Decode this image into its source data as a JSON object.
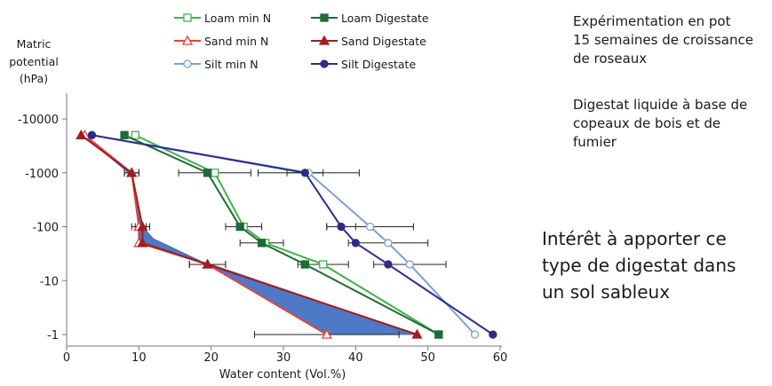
{
  "chart_data": {
    "type": "line",
    "ylabel_lines": [
      "Matric",
      "potential",
      "(hPa)"
    ],
    "xlabel": "Water content (Vol.%)",
    "xlim": [
      0,
      60
    ],
    "xticks": [
      "0",
      "10",
      "20",
      "30",
      "40",
      "50",
      "60"
    ],
    "yticks": [
      "-10000",
      "-1000",
      "-100",
      "-10",
      "-1"
    ],
    "y_levels": [
      -10000,
      -1000,
      -100,
      -10,
      -1
    ],
    "y_scale": "log",
    "grid": false,
    "legend_position": "top",
    "shaded_region": {
      "color": "#4472c4",
      "description_fill_between": [
        "Sand min N",
        "Sand Digestate"
      ]
    },
    "series": [
      {
        "name": "Loam min N",
        "color": "#3fb34a",
        "marker": "square-open",
        "points": [
          [
            9.5,
            -5000
          ],
          [
            20.5,
            -1000
          ],
          [
            24.5,
            -100
          ],
          [
            27.5,
            -50
          ],
          [
            35.5,
            -20
          ],
          [
            51.5,
            -1
          ]
        ],
        "err": [
          0,
          5,
          2.5,
          0,
          3.5,
          0
        ]
      },
      {
        "name": "Loam Digestate",
        "color": "#1e6b36",
        "marker": "square-filled",
        "points": [
          [
            8.0,
            -5000
          ],
          [
            19.5,
            -1000
          ],
          [
            24.0,
            -100
          ],
          [
            27.0,
            -50
          ],
          [
            33.0,
            -20
          ],
          [
            51.5,
            -1
          ]
        ],
        "err": [
          0,
          0,
          0,
          3,
          0,
          0
        ]
      },
      {
        "name": "Sand min N",
        "color": "#e8413c",
        "marker": "triangle-open",
        "points": [
          [
            2.5,
            -5000
          ],
          [
            9.0,
            -1000
          ],
          [
            10.0,
            -100
          ],
          [
            10.0,
            -50
          ],
          [
            19.5,
            -20
          ],
          [
            36.0,
            -1
          ]
        ],
        "err": [
          0,
          1,
          1,
          0,
          2.5,
          10
        ]
      },
      {
        "name": "Sand Digestate",
        "color": "#a21e1e",
        "marker": "triangle-filled",
        "points": [
          [
            2.0,
            -5000
          ],
          [
            9.0,
            -1000
          ],
          [
            10.5,
            -100
          ],
          [
            10.5,
            -50
          ],
          [
            19.5,
            -20
          ],
          [
            48.5,
            -1
          ]
        ],
        "err": [
          0,
          1,
          1,
          0,
          2.5,
          0
        ]
      },
      {
        "name": "Silt min N",
        "color": "#7b9fd8",
        "marker": "circle-open",
        "points": [
          [
            3.5,
            -5000
          ],
          [
            33.5,
            -1000
          ],
          [
            42.0,
            -100
          ],
          [
            44.5,
            -50
          ],
          [
            47.5,
            -20
          ],
          [
            56.5,
            -1
          ]
        ],
        "err": [
          0,
          7,
          6,
          5.5,
          5,
          0
        ]
      },
      {
        "name": "Silt Digestate",
        "color": "#2d2c8a",
        "marker": "circle-filled",
        "points": [
          [
            3.5,
            -5000
          ],
          [
            33.0,
            -1000
          ],
          [
            38.0,
            -100
          ],
          [
            40.0,
            -50
          ],
          [
            44.5,
            -20
          ],
          [
            59.0,
            -1
          ]
        ],
        "err": [
          0,
          2.5,
          2,
          0,
          0,
          0
        ]
      }
    ]
  },
  "notes": {
    "experiment": [
      "Expérimentation en pot",
      "15 semaines de croissance",
      "de roseaux"
    ],
    "digestate": [
      "Digestat liquide à base de",
      "copeaux de bois et de",
      "fumier"
    ],
    "interest": [
      "Intérêt à apporter ce",
      "type  de digestat dans",
      "un sol sableux"
    ]
  }
}
